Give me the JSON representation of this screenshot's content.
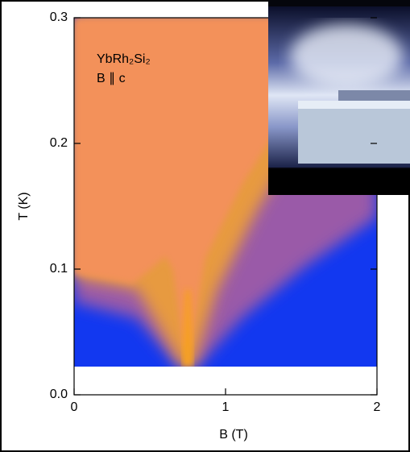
{
  "chart_data": {
    "type": "heatmap",
    "annotations": [
      "YbRh₂Si₂",
      "B ∥ c"
    ],
    "x_label": "B (T)",
    "y_label": "T (K)",
    "xlim": [
      0,
      2
    ],
    "xticks": [
      0,
      1,
      2
    ],
    "ylim": [
      0,
      0.3
    ],
    "yticks": [
      {
        "value": 0,
        "label": "0.0"
      },
      0.1,
      0.2,
      0.3
    ]
  }
}
